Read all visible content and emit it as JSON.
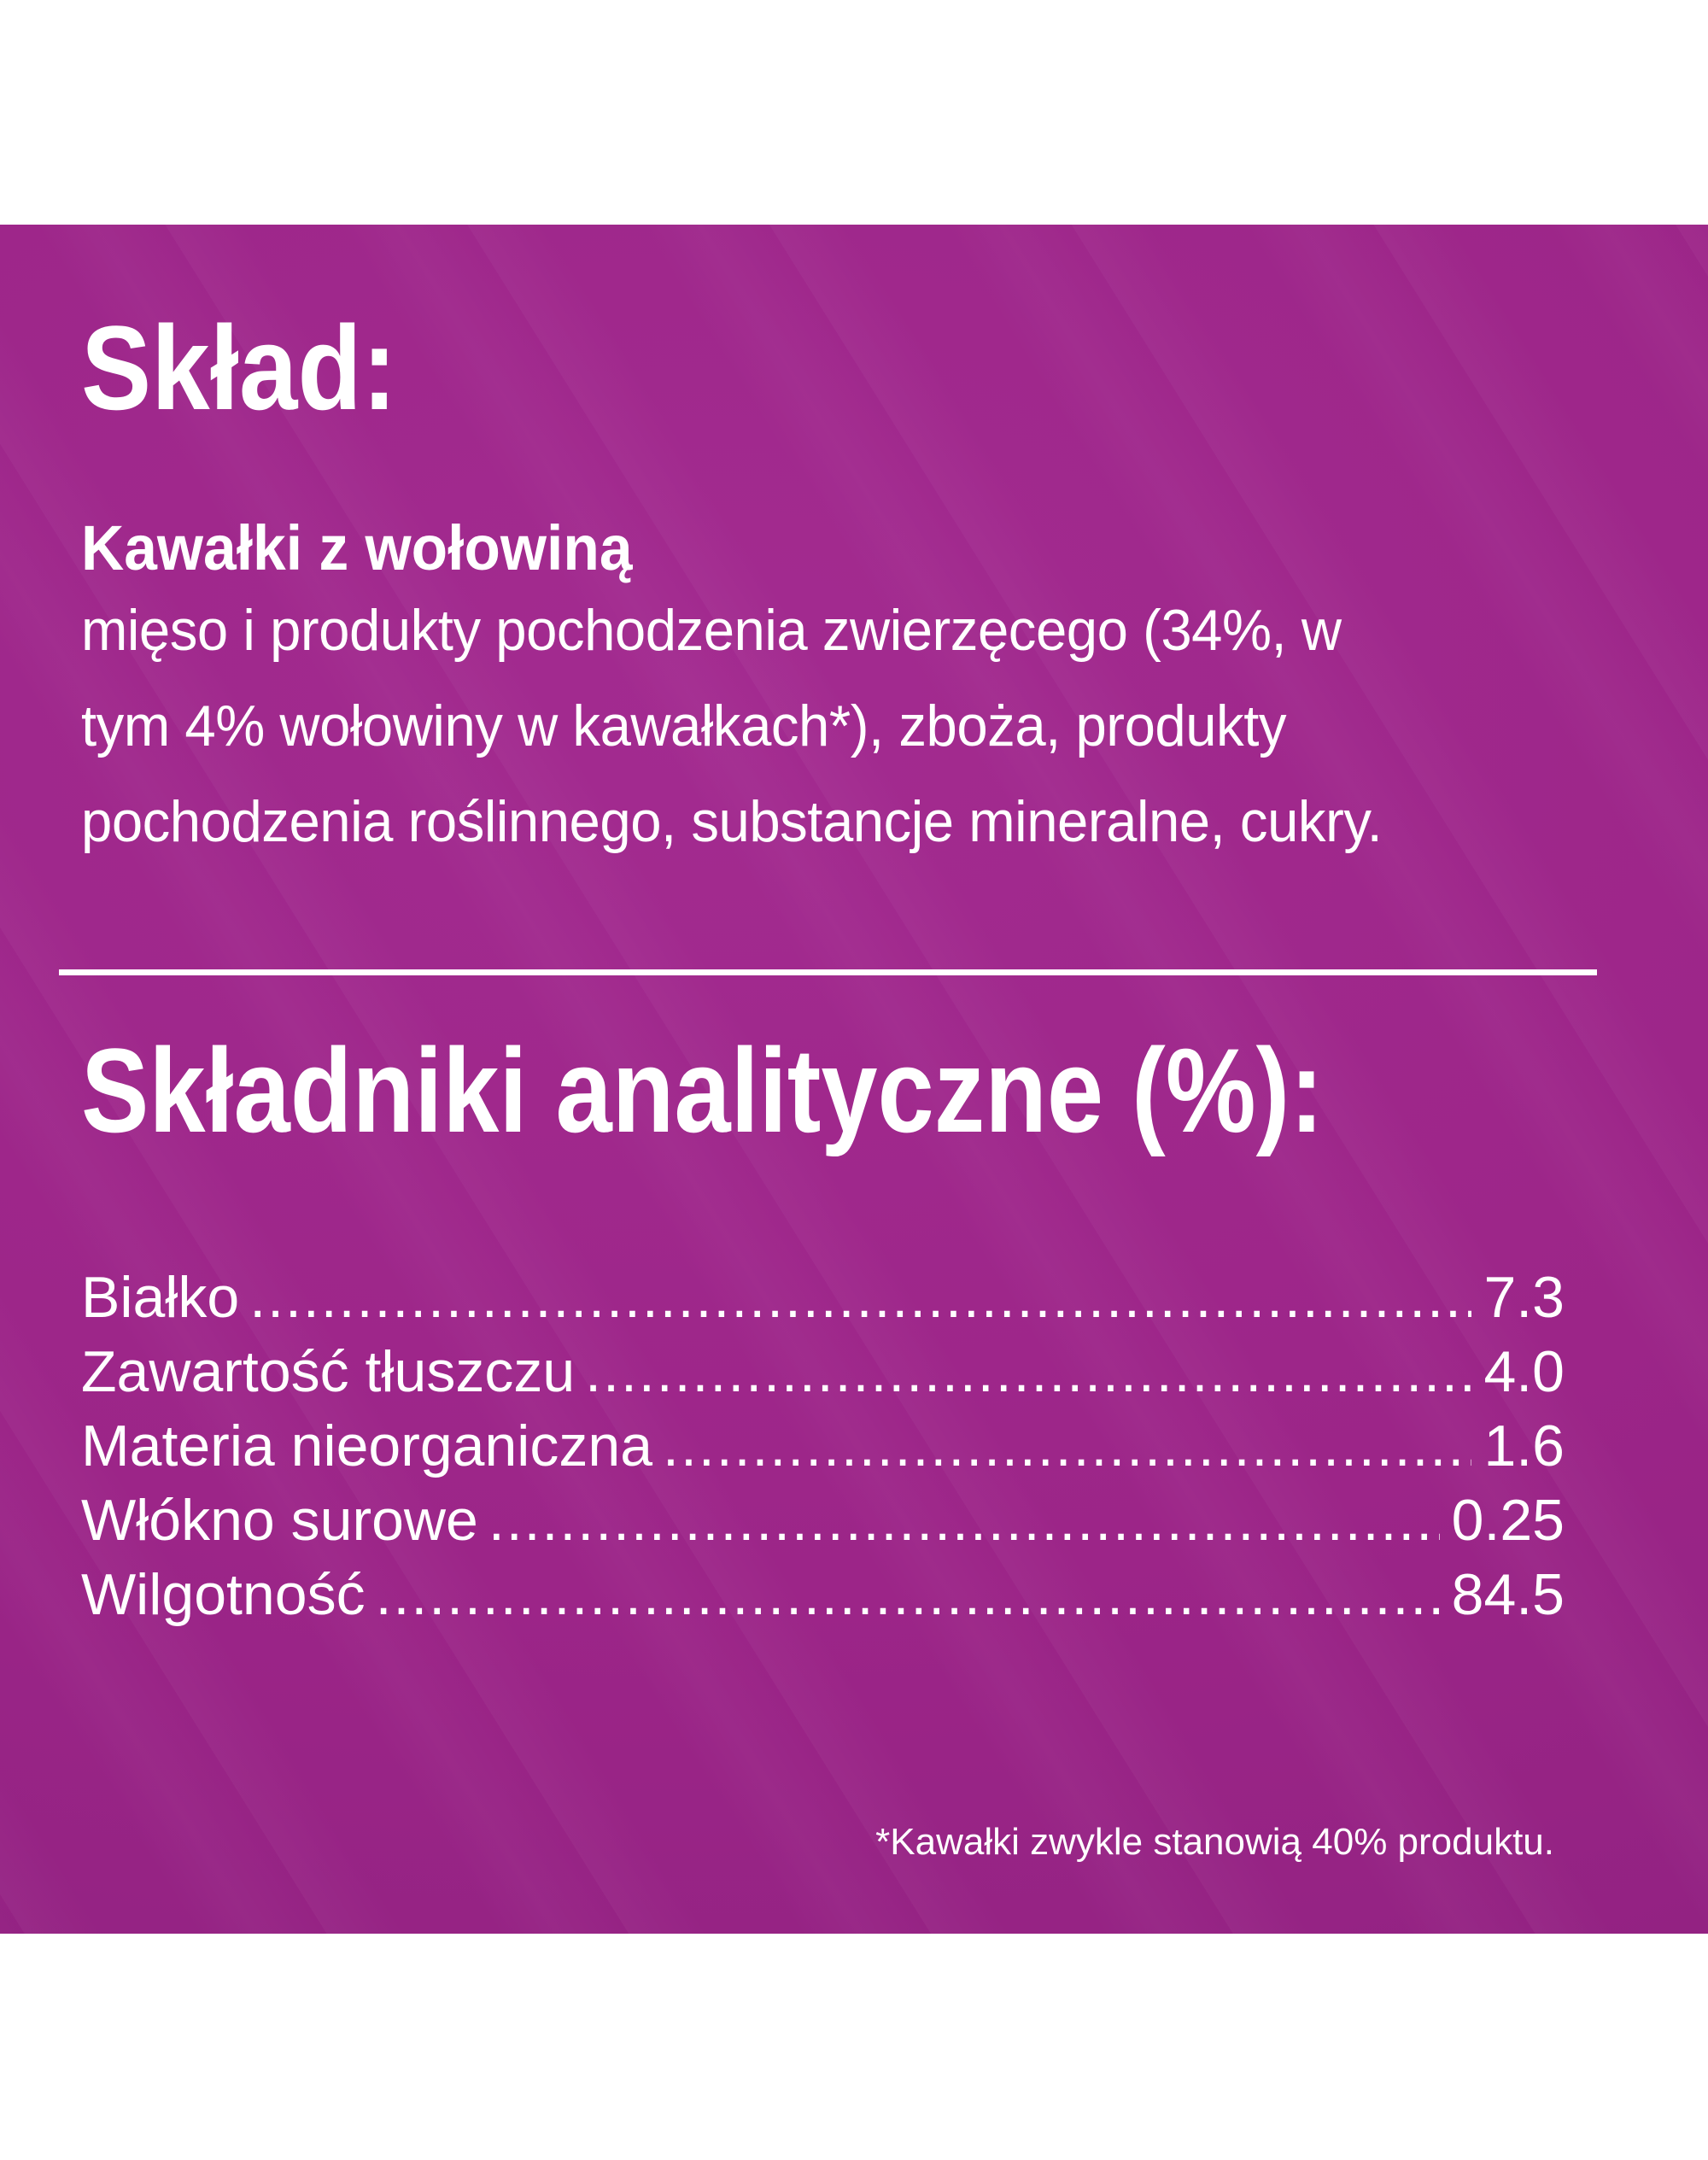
{
  "label": {
    "composition": {
      "title": "Skład:",
      "product_name": "Kawałki z wołowiną",
      "description_lines": [
        "mięso i produkty pochodzenia zwierzęcego (34%, w",
        "tym 4% wołowiny w kawałkach*), zboża, produkty",
        "pochodzenia roślinnego, substancje mineralne, cukry."
      ]
    },
    "analytical": {
      "title": "Składniki analityczne (%):",
      "items": [
        {
          "label": "Białko",
          "value": "7.3"
        },
        {
          "label": "Zawartość tłuszczu",
          "value": "4.0"
        },
        {
          "label": "Materia nieorganiczna",
          "value": "1.6"
        },
        {
          "label": "Włókno surowe",
          "value": "0.25"
        },
        {
          "label": "Wilgotność",
          "value": "84.5"
        }
      ]
    },
    "footnote": "*Kawałki zwykle stanowią 40% produktu.",
    "colors": {
      "background": "#ffffff",
      "panel_highlight": "#a32b90",
      "panel_base": "#9c2588",
      "panel_shadow": "#8f2180",
      "text": "#ffffff"
    }
  }
}
